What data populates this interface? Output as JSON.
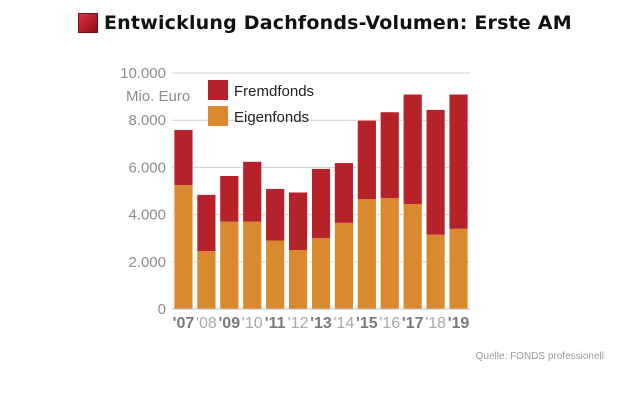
{
  "title": "Entwicklung Dachfonds-Volumen: Erste AM",
  "source": "Quelle: FONDS professionell",
  "chart_data": {
    "type": "bar",
    "stacked": true,
    "categories": [
      "'07",
      "'08",
      "'09",
      "'10",
      "'11",
      "'12",
      "'13",
      "'14",
      "'15",
      "'16",
      "'17",
      "'18",
      "'19"
    ],
    "series": [
      {
        "name": "Eigenfonds",
        "color": "#d98a2e",
        "values": [
          5250,
          2450,
          3700,
          3700,
          2900,
          2500,
          3000,
          3650,
          4650,
          4700,
          4450,
          3150,
          3400
        ]
      },
      {
        "name": "Fremdfonds",
        "color": "#b5222a",
        "values": [
          2350,
          2400,
          1950,
          2550,
          2200,
          2450,
          2950,
          2550,
          3350,
          3650,
          4650,
          5300,
          5700
        ]
      }
    ],
    "unit_label": "Mio. Euro",
    "yticks": [
      "0",
      "2.000",
      "4.000",
      "6.000",
      "8.000",
      "10.000"
    ],
    "ytick_values": [
      0,
      2000,
      4000,
      6000,
      8000,
      10000
    ],
    "ylim": [
      0,
      10000
    ],
    "grid": true,
    "legend": "top-left",
    "xtick_bold": [
      true,
      false,
      true,
      false,
      true,
      false,
      true,
      false,
      true,
      false,
      true,
      false,
      true
    ]
  }
}
